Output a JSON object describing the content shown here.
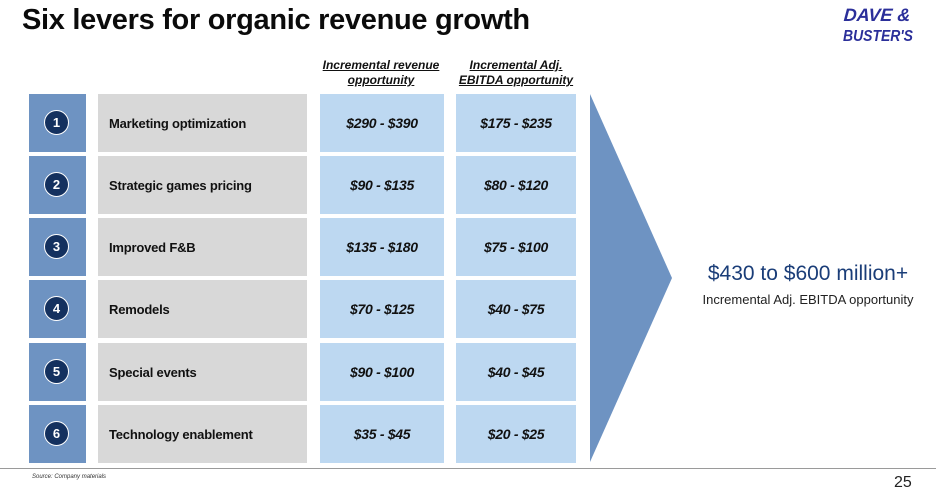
{
  "title": "Six levers for organic revenue growth",
  "logo": {
    "line1": "DAVE &",
    "line2": "BUSTER'S"
  },
  "columns": {
    "revenue": "Incremental revenue opportunity",
    "ebitda": "Incremental Adj. EBITDA opportunity"
  },
  "rows": [
    {
      "num": "1",
      "label": "Marketing optimization",
      "revenue": "$290 - $390",
      "ebitda": "$175 - $235"
    },
    {
      "num": "2",
      "label": "Strategic games pricing",
      "revenue": "$90 - $135",
      "ebitda": "$80 - $120"
    },
    {
      "num": "3",
      "label": "Improved F&B",
      "revenue": "$135 - $180",
      "ebitda": "$75 - $100"
    },
    {
      "num": "4",
      "label": "Remodels",
      "revenue": "$70 - $125",
      "ebitda": "$40 - $75"
    },
    {
      "num": "5",
      "label": "Special events",
      "revenue": "$90 - $100",
      "ebitda": "$40 - $45"
    },
    {
      "num": "6",
      "label": "Technology enablement",
      "revenue": "$35 - $45",
      "ebitda": "$20 - $25"
    }
  ],
  "total": {
    "value": "$430 to $600 million+",
    "caption": "Incremental Adj. EBITDA opportunity"
  },
  "footer": {
    "source": "Source: Company materials",
    "page": "25"
  },
  "colors": {
    "number_cell": "#6e93c2",
    "number_circle": "#14315f",
    "label_cell": "#d8d8d8",
    "value_cell": "#bdd8f1",
    "arrow": "#6e93c2",
    "total_text": "#1a3d78"
  }
}
